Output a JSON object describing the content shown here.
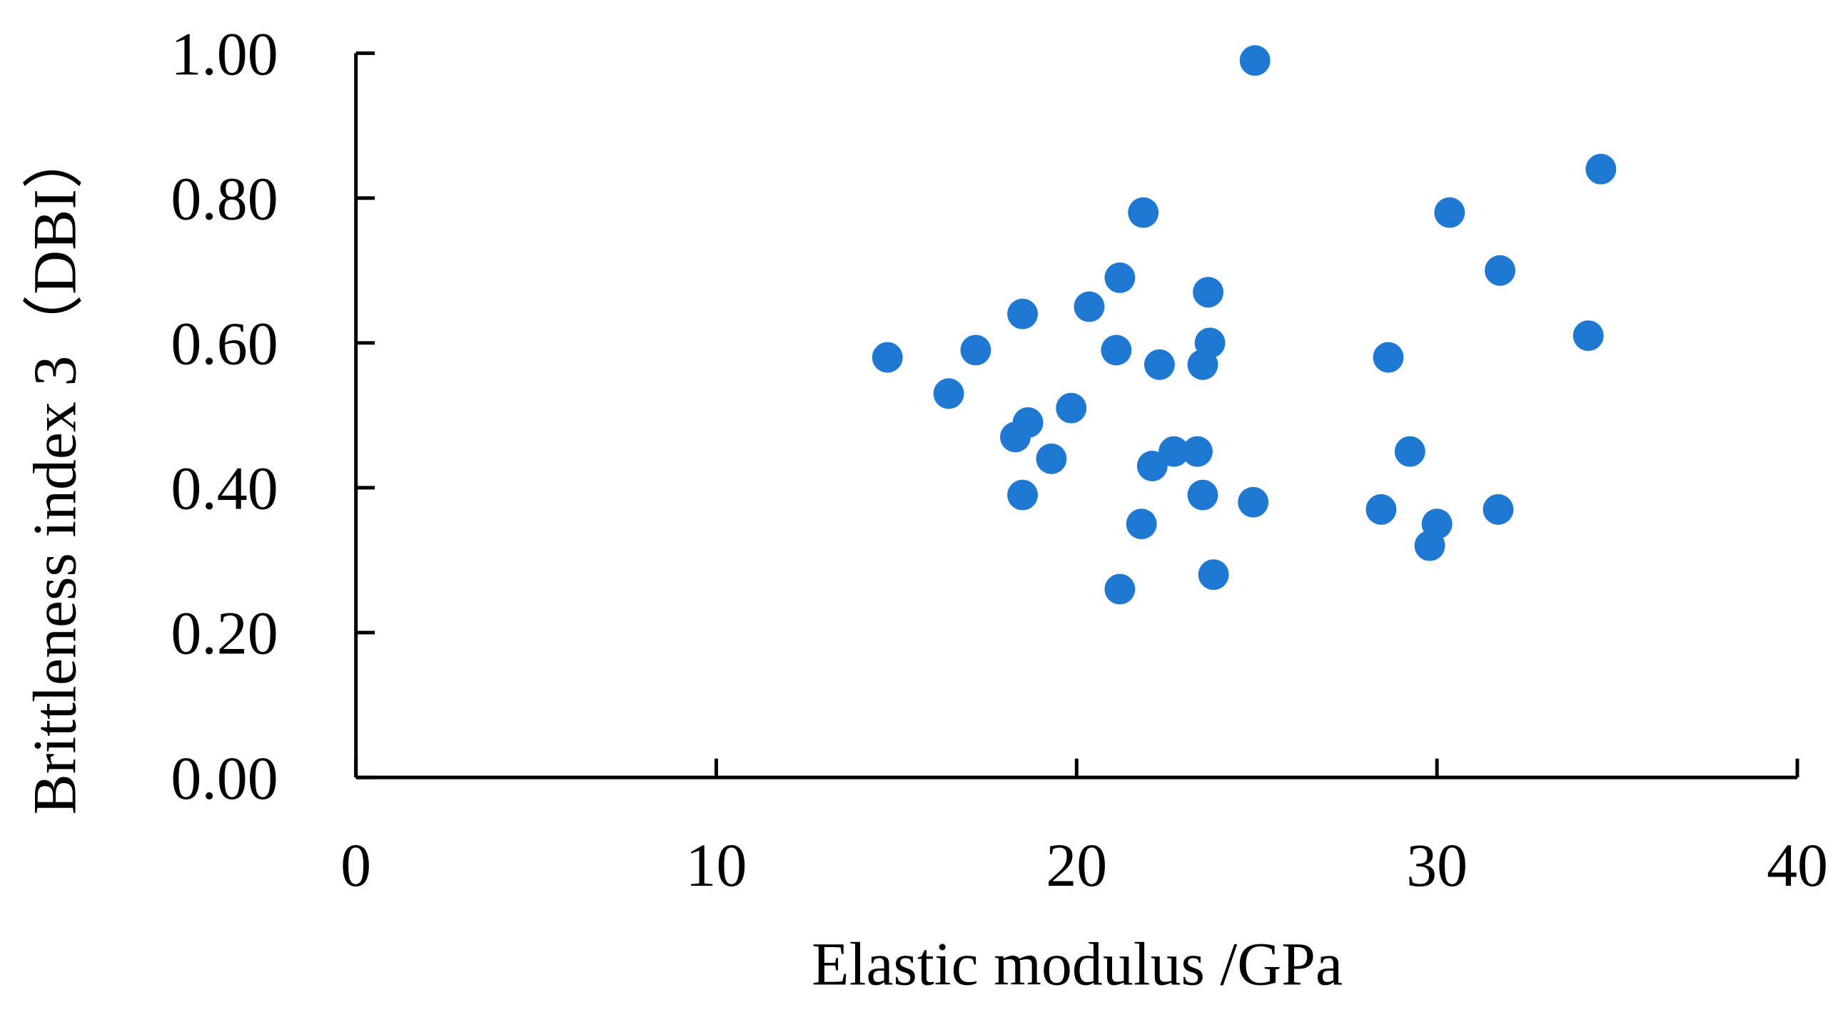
{
  "chart_data": {
    "type": "scatter",
    "x_label": "Elastic modulus /GPa",
    "y_label": "Brittleness index 3（DBI）",
    "color": "#1f78d1",
    "xlim": [
      0,
      40
    ],
    "xticks": [
      0,
      10,
      20,
      30,
      40
    ],
    "ylim": [
      0,
      1
    ],
    "yticks": [
      {
        "value": 0,
        "label": "0.00"
      },
      {
        "value": 0.2,
        "label": "0.20"
      },
      {
        "value": 0.4,
        "label": "0.40"
      },
      {
        "value": 0.6,
        "label": "0.60"
      },
      {
        "value": 0.8,
        "label": "0.80"
      },
      {
        "value": 1,
        "label": "1.00"
      }
    ],
    "x": [
      14.75,
      16.45,
      17.2,
      18.5,
      18.65,
      18.3,
      18.5,
      19.3,
      19.85,
      20.35,
      21.2,
      21.1,
      21.2,
      21.85,
      21.8,
      22.1,
      22.3,
      22.7,
      23.35,
      23.5,
      23.65,
      23.7,
      23.5,
      23.8,
      24.9,
      24.95,
      28.45,
      28.65,
      29.25,
      29.8,
      30.0,
      30.35,
      31.75,
      31.7,
      34.2,
      34.55
    ],
    "values": [
      0.58,
      0.53,
      0.59,
      0.64,
      0.49,
      0.47,
      0.39,
      0.44,
      0.51,
      0.65,
      0.69,
      0.59,
      0.26,
      0.78,
      0.35,
      0.43,
      0.57,
      0.45,
      0.45,
      0.57,
      0.67,
      0.6,
      0.39,
      0.28,
      0.38,
      0.99,
      0.37,
      0.58,
      0.45,
      0.32,
      0.35,
      0.78,
      0.7,
      0.37,
      0.61,
      0.84
    ]
  }
}
